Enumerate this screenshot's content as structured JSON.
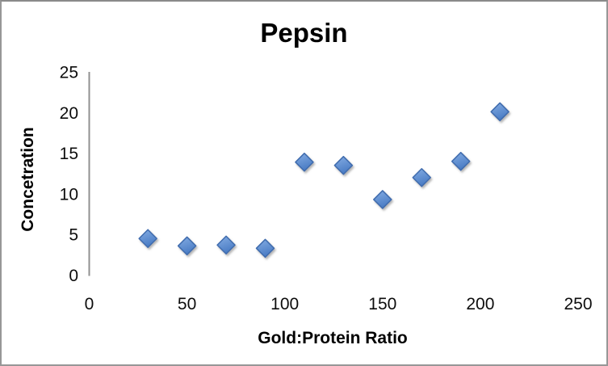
{
  "window": {
    "background": "#ffffff",
    "border_color": "#979797"
  },
  "chart_data": {
    "type": "scatter",
    "title": "Pepsin",
    "xlabel": "Gold:Protein Ratio",
    "ylabel": "Concetration",
    "x": [
      30,
      50,
      70,
      90,
      110,
      130,
      150,
      170,
      190,
      210
    ],
    "y": [
      4.5,
      3.6,
      3.7,
      3.3,
      13.9,
      13.5,
      9.3,
      12.0,
      14.0,
      20.1
    ],
    "xlim": [
      0,
      250
    ],
    "ylim": [
      0,
      25
    ],
    "x_ticks": [
      0,
      50,
      100,
      150,
      200,
      250
    ],
    "y_ticks": [
      0,
      5,
      10,
      15,
      20,
      25
    ],
    "grid": "horizontal",
    "legend": "none",
    "marker": {
      "shape": "diamond",
      "fill_top": "#85ade3",
      "fill_bottom": "#4a7cc4",
      "border": "#3f6cae"
    },
    "gridline_color": "#9b9b9b",
    "axis_color": "#919191",
    "tick_text_color": "#0d0d0d"
  }
}
